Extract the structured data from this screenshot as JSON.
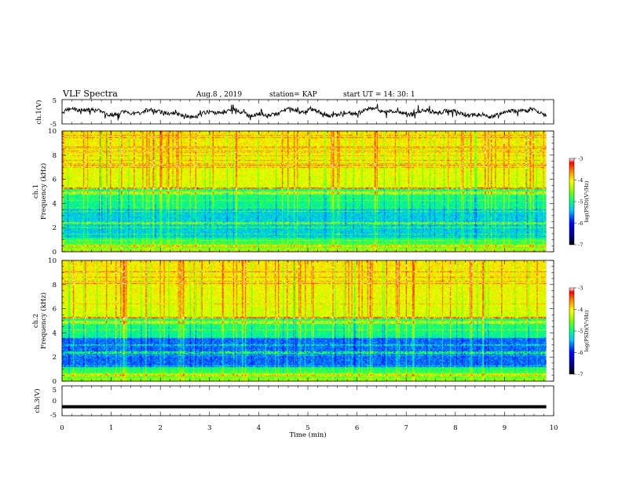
{
  "header": {
    "title": "VLF Spectra",
    "date": "Aug.8 , 2019",
    "station": "station= KAP",
    "start": "start  UT =   14: 30: 1"
  },
  "chart_data": [
    {
      "type": "line",
      "name": "ch1-waveform",
      "ylabel": "ch.1(V)",
      "ylim": [
        -5,
        5
      ],
      "yticks": [
        "5",
        "-5"
      ],
      "xlim": [
        0,
        10
      ],
      "color": "#000000",
      "description_values": "noisy trace fluctuating roughly between -3 and 2 V, spans 0 to 9.85 min"
    },
    {
      "type": "heatmap",
      "name": "ch1-spectrogram",
      "ylabel_line1": "ch.1",
      "ylabel_line2": "Frequency (kHz)",
      "ylim": [
        0,
        10
      ],
      "yticks": [
        "0",
        "2",
        "4",
        "6",
        "8",
        "10"
      ],
      "xlim": [
        0,
        10
      ],
      "data_extent_min": 9.85,
      "colorbar": {
        "label": "log(PSD)(V²/Hz)",
        "range": [
          -7,
          -3
        ],
        "ticks": [
          "-3",
          "-4",
          "-5",
          "-6",
          "-7"
        ]
      }
    },
    {
      "type": "heatmap",
      "name": "ch2-spectrogram",
      "ylabel_line1": "ch.2",
      "ylabel_line2": "Frequency (kHz)",
      "ylim": [
        0,
        10
      ],
      "yticks": [
        "0",
        "2",
        "4",
        "6",
        "8",
        "10"
      ],
      "xlim": [
        0,
        10
      ],
      "data_extent_min": 9.85,
      "colorbar": {
        "label": "log(PSD)(V²/Hz)",
        "range": [
          -7,
          -3
        ],
        "ticks": [
          "-3",
          "-4",
          "-5",
          "-6",
          "-7"
        ]
      }
    },
    {
      "type": "line",
      "name": "ch3-waveform",
      "ylabel": "ch.3(V)",
      "ylim": [
        -5,
        5
      ],
      "yticks": [
        "5",
        "0",
        "-5"
      ],
      "xlim": [
        0,
        10
      ],
      "values_constant": -2,
      "color": "#000000"
    }
  ],
  "xaxis": {
    "label": "Time  (min)",
    "ticks": [
      "0",
      "1",
      "2",
      "3",
      "4",
      "5",
      "6",
      "7",
      "8",
      "9",
      "10"
    ]
  },
  "colors": {
    "high": "#ff0000",
    "mid": "#ffff00",
    "low": "#0000ff",
    "floor": "#000000"
  }
}
